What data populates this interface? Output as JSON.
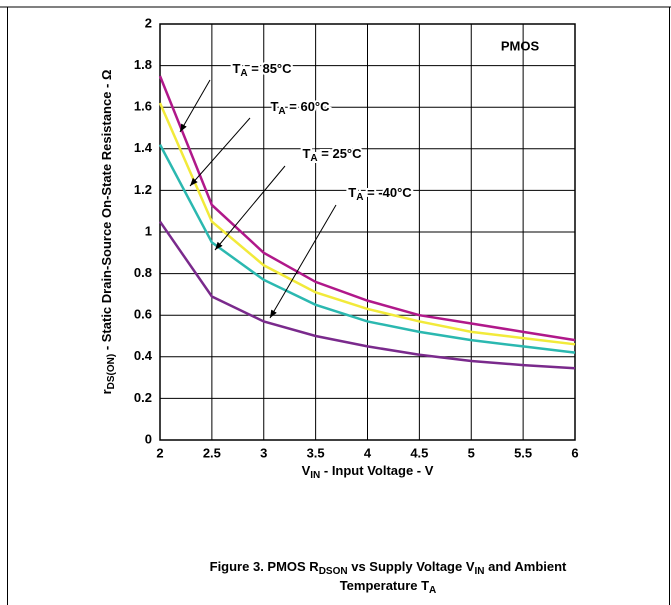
{
  "chart_data": {
    "type": "line",
    "label_box": "PMOS",
    "x_label": [
      "V",
      "IN",
      " - Input Voltage - V"
    ],
    "y_label": [
      "r",
      "DS(ON)",
      " - Static Drain-Source On-State Resistance - Ω"
    ],
    "caption": [
      [
        "Figure 3. PMOS R",
        "DSON",
        " vs Supply Voltage V",
        "IN",
        " and Ambient"
      ],
      [
        "Temperature T",
        "A"
      ]
    ],
    "x": [
      2,
      2.5,
      3,
      3.5,
      4,
      4.5,
      5,
      5.5,
      6
    ],
    "series": [
      {
        "name": [
          "T",
          "A",
          " = 85°C"
        ],
        "color": "#b0188a",
        "values": [
          1.75,
          1.13,
          0.9,
          0.76,
          0.67,
          0.6,
          0.56,
          0.52,
          0.48
        ]
      },
      {
        "name": [
          "T",
          "A",
          " = 60°C"
        ],
        "color": "#f2ea3a",
        "values": [
          1.62,
          1.05,
          0.84,
          0.71,
          0.63,
          0.57,
          0.52,
          0.49,
          0.46
        ]
      },
      {
        "name": [
          "T",
          "A",
          " = 25°C"
        ],
        "color": "#2bb8b0",
        "values": [
          1.42,
          0.95,
          0.77,
          0.65,
          0.57,
          0.52,
          0.48,
          0.45,
          0.42
        ]
      },
      {
        "name": [
          "T",
          "A",
          " = -40°C"
        ],
        "color": "#7a2a8c",
        "values": [
          1.05,
          0.69,
          0.57,
          0.5,
          0.45,
          0.41,
          0.38,
          0.36,
          0.345
        ]
      }
    ],
    "xlim": [
      2,
      6
    ],
    "xticks": [
      2,
      2.5,
      3,
      3.5,
      4,
      4.5,
      5,
      5.5,
      6
    ],
    "ylim": [
      0,
      2
    ],
    "yticks": [
      0,
      0.2,
      0.4,
      0.6,
      0.8,
      1,
      1.2,
      1.4,
      1.6,
      1.8,
      2
    ],
    "grid": true
  }
}
